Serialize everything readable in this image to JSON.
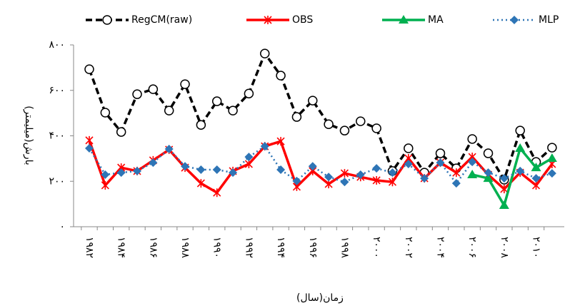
{
  "chart_data": {
    "type": "line",
    "y_label": "بارش(میلیمتر)",
    "x_label": "زمان(سال)",
    "categories": [
      "۱۹۸۲",
      null,
      "۱۹۸۴",
      null,
      "۱۹۸۶",
      null,
      "۱۹۸۸",
      null,
      "۱۹۹۰",
      null,
      "۱۹۹۲",
      null,
      "۱۹۹۴",
      null,
      "۱۹۹۶",
      null,
      "۱۹۹۸",
      null,
      "۲۰۰۰",
      null,
      "۲۰۰۲",
      null,
      "۲۰۰۴",
      null,
      "۲۰۰۶",
      null,
      "۲۰۰۸",
      null,
      "۲۰۱۰",
      null
    ],
    "series": [
      {
        "name": "RegCM(raw)",
        "color": "#000000",
        "dash": "dashed",
        "marker": "circle",
        "values": [
          693,
          502,
          417,
          583,
          605,
          511,
          627,
          448,
          552,
          511,
          586,
          762,
          665,
          483,
          555,
          451,
          423,
          464,
          433,
          245,
          345,
          238,
          323,
          257,
          386,
          323,
          207,
          423,
          285,
          348
        ]
      },
      {
        "name": "OBS",
        "color": "#ff0000",
        "dash": "solid",
        "marker": "star",
        "values": [
          380,
          182,
          260,
          245,
          292,
          339,
          260,
          191,
          150,
          245,
          276,
          354,
          376,
          176,
          245,
          188,
          235,
          219,
          204,
          197,
          301,
          213,
          282,
          238,
          307,
          229,
          166,
          238,
          182,
          276
        ]
      },
      {
        "name": "MA",
        "color": "#00b050",
        "dash": "solid",
        "marker": "triangle",
        "values": [
          null,
          null,
          null,
          null,
          null,
          null,
          null,
          null,
          null,
          null,
          null,
          null,
          null,
          null,
          null,
          null,
          null,
          null,
          null,
          null,
          null,
          null,
          null,
          null,
          229,
          213,
          94,
          345,
          260,
          301
        ]
      },
      {
        "name": "MLP",
        "color": "#2e75b6",
        "dash": "dotted",
        "marker": "diamond",
        "values": [
          345,
          229,
          238,
          245,
          282,
          342,
          266,
          251,
          251,
          238,
          307,
          354,
          251,
          201,
          266,
          219,
          197,
          229,
          257,
          238,
          276,
          213,
          282,
          191,
          285,
          238,
          213,
          245,
          213,
          235
        ]
      }
    ],
    "ylim": [
      0,
      800
    ],
    "yticks": [
      {
        "value": 0,
        "label": "۰"
      },
      {
        "value": 200,
        "label": "۲۰۰"
      },
      {
        "value": 400,
        "label": "۴۰۰"
      },
      {
        "value": 600,
        "label": "۶۰۰"
      },
      {
        "value": 800,
        "label": "۸۰۰"
      }
    ],
    "legend": "top",
    "grid": false
  }
}
